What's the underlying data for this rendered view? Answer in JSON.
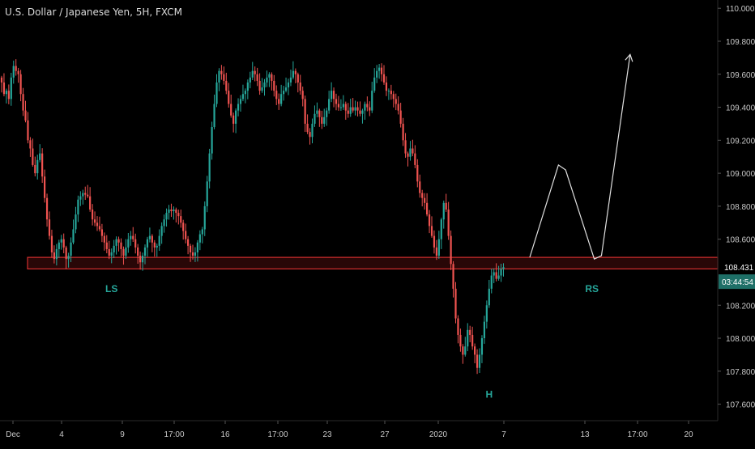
{
  "symbol_title": "U.S. Dollar / Japanese Yen, 5H, FXCM",
  "price_label": "108.431",
  "countdown_label": "03:44:54",
  "colors": {
    "background": "#000000",
    "bull": "#26a69a",
    "bear": "#ef5350",
    "axis_text": "#c8c8c8",
    "zone_stroke": "#d32f2f",
    "zone_fill": "#3a0a0a",
    "pattern_label": "#26a69a",
    "projection": "#e0e0e0"
  },
  "pattern_labels": [
    "LS",
    "H",
    "RS"
  ],
  "chart_data": {
    "type": "candlestick",
    "title": "U.S. Dollar / Japanese Yen, 5H, FXCM",
    "y_axis": {
      "ticks": [
        "110.000",
        "109.800",
        "109.600",
        "109.400",
        "109.200",
        "109.000",
        "108.800",
        "108.600",
        "108.200",
        "108.000",
        "107.800",
        "107.600"
      ],
      "range": [
        107.5,
        110.05
      ]
    },
    "x_axis": {
      "ticks": [
        "Dec",
        "4",
        "9",
        "17:00",
        "16",
        "17:00",
        "23",
        "27",
        "2020",
        "7",
        "13",
        "17:00",
        "20"
      ]
    },
    "last_price": 108.431,
    "resistance_zone": [
      108.42,
      108.49
    ],
    "candles_close": [
      109.55,
      109.48,
      109.5,
      109.45,
      109.58,
      109.65,
      109.62,
      109.6,
      109.48,
      109.38,
      109.32,
      109.2,
      109.15,
      109.05,
      109.0,
      109.08,
      109.12,
      108.98,
      108.85,
      108.72,
      108.62,
      108.52,
      108.48,
      108.54,
      108.58,
      108.6,
      108.55,
      108.48,
      108.5,
      108.58,
      108.66,
      108.75,
      108.84,
      108.86,
      108.88,
      108.87,
      108.86,
      108.78,
      108.72,
      108.7,
      108.68,
      108.66,
      108.62,
      108.58,
      108.54,
      108.5,
      108.52,
      108.56,
      108.6,
      108.58,
      108.54,
      108.5,
      108.55,
      108.6,
      108.62,
      108.6,
      108.55,
      108.5,
      108.46,
      108.5,
      108.55,
      108.6,
      108.62,
      108.58,
      108.55,
      108.56,
      108.62,
      108.68,
      108.72,
      108.76,
      108.78,
      108.77,
      108.78,
      108.76,
      108.74,
      108.7,
      108.65,
      108.6,
      108.56,
      108.52,
      108.5,
      108.52,
      108.58,
      108.63,
      108.66,
      108.8,
      108.95,
      109.12,
      109.28,
      109.42,
      109.55,
      109.62,
      109.6,
      109.56,
      109.5,
      109.42,
      109.35,
      109.3,
      109.38,
      109.42,
      109.45,
      109.48,
      109.5,
      109.55,
      109.58,
      109.62,
      109.6,
      109.56,
      109.5,
      109.52,
      109.55,
      109.58,
      109.6,
      109.56,
      109.5,
      109.45,
      109.42,
      109.48,
      109.5,
      109.52,
      109.55,
      109.58,
      109.62,
      109.6,
      109.55,
      109.5,
      109.45,
      109.3,
      109.25,
      109.22,
      109.3,
      109.36,
      109.38,
      109.34,
      109.3,
      109.34,
      109.38,
      109.45,
      109.5,
      109.45,
      109.42,
      109.4,
      109.4,
      109.42,
      109.38,
      109.36,
      109.4,
      109.38,
      109.4,
      109.38,
      109.36,
      109.38,
      109.42,
      109.4,
      109.38,
      109.5,
      109.58,
      109.62,
      109.64,
      109.6,
      109.55,
      109.5,
      109.5,
      109.48,
      109.45,
      109.42,
      109.38,
      109.3,
      109.2,
      109.12,
      109.1,
      109.15,
      109.12,
      109.05,
      108.95,
      108.88,
      108.85,
      108.82,
      108.75,
      108.68,
      108.62,
      108.55,
      108.5,
      108.6,
      108.72,
      108.82,
      108.78,
      108.62,
      108.45,
      108.3,
      108.12,
      108.02,
      107.95,
      107.9,
      107.95,
      108.05,
      108.02,
      107.95,
      107.9,
      107.82,
      107.9,
      108.0,
      108.1,
      108.2,
      108.3,
      108.38,
      108.4,
      108.36,
      108.38,
      108.42,
      108.431
    ],
    "projection_path": [
      {
        "x_index": 221,
        "y": 108.49
      },
      {
        "x_index": 233,
        "y": 109.05
      },
      {
        "x_index": 236,
        "y": 109.02
      },
      {
        "x_index": 248,
        "y": 108.48
      },
      {
        "x_index": 251,
        "y": 108.5
      },
      {
        "x_index": 263,
        "y": 109.72
      }
    ],
    "labels": [
      {
        "text": "LS",
        "x_index": 46,
        "y": 108.28
      },
      {
        "text": "H",
        "x_index": 204,
        "y": 107.64
      },
      {
        "text": "RS",
        "x_index": 247,
        "y": 108.28
      }
    ]
  }
}
